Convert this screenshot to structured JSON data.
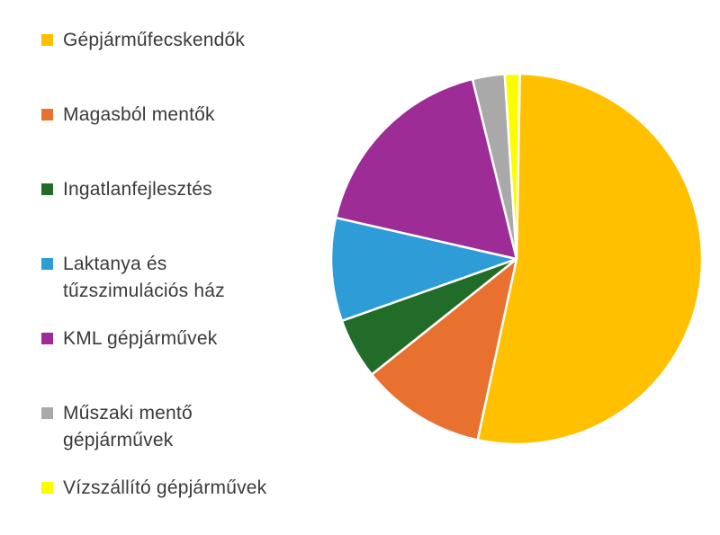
{
  "figure": {
    "background": "#FFFFFF",
    "text_color": "#3A3A3A"
  },
  "legend": {
    "position": "left",
    "items": [
      {
        "line1": "Gépjárműfecskendők",
        "line2": "",
        "color": "#FFC000"
      },
      {
        "line1": "Magasból mentők",
        "line2": "",
        "color": "#E8712F"
      },
      {
        "line1": "Ingatlanfejlesztés",
        "line2": "",
        "color": "#226C29"
      },
      {
        "line1": "Laktanya és",
        "line2": "tűzszimulációs ház",
        "color": "#2E9CD7"
      },
      {
        "line1": "KML gépjárművek",
        "line2": "",
        "color": "#9E2C96"
      },
      {
        "line1": "Műszaki mentő",
        "line2": "gépjárművek",
        "color": "#A9A9A9"
      },
      {
        "line1": "Vízszállító gépjárművek",
        "line2": "",
        "color": "#FCFC00"
      }
    ]
  },
  "chart_data": {
    "type": "pie",
    "title": "",
    "legend_position": "left",
    "start_angle_deg": 1,
    "separator_color": "#FFFFFF",
    "slices": [
      {
        "label": "Gépjárműfecskendők",
        "value": 53.1,
        "color": "#FFC000"
      },
      {
        "label": "Magasból mentők",
        "value": 10.9,
        "color": "#E8712F"
      },
      {
        "label": "Ingatlanfejlesztés",
        "value": 5.3,
        "color": "#226C29"
      },
      {
        "label": "Laktanya és tűzszimulációs ház",
        "value": 9.0,
        "color": "#2E9CD7"
      },
      {
        "label": "KML gépjárművek",
        "value": 17.6,
        "color": "#9E2C96"
      },
      {
        "label": "Műszaki mentő gépjárművek",
        "value": 2.8,
        "color": "#A9A9A9"
      },
      {
        "label": "Vízszállító gépjárművek",
        "value": 1.3,
        "color": "#FCFC00"
      }
    ]
  }
}
